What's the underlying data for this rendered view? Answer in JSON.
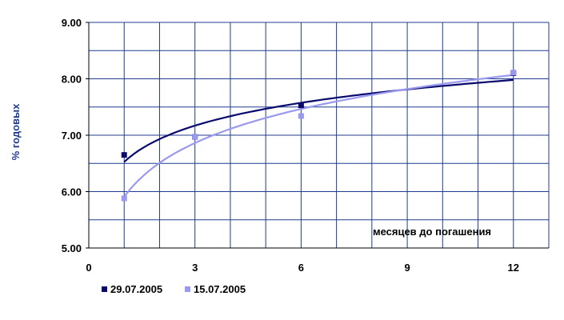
{
  "chart_data": {
    "type": "scatter",
    "title": "",
    "ylabel": "% годовых",
    "xlabel": "",
    "annotation": "месяцев до погашения",
    "xlim": [
      0,
      13
    ],
    "ylim": [
      5.0,
      9.0
    ],
    "xticks": [
      0,
      3,
      6,
      9,
      12
    ],
    "xtick_labels": [
      "0",
      "3",
      "6",
      "9",
      "12"
    ],
    "yticks": [
      5.0,
      6.0,
      7.0,
      8.0,
      9.0
    ],
    "ytick_labels": [
      "5.00",
      "6.00",
      "7.00",
      "8.00",
      "9.00"
    ],
    "grid": true,
    "legend_position": "bottom-left",
    "trendline": "logarithmic",
    "series": [
      {
        "name": "29.07.2005",
        "color": "#0a0a6e",
        "x": [
          1,
          3,
          6,
          12
        ],
        "y": [
          6.65,
          6.97,
          7.53,
          8.1
        ]
      },
      {
        "name": "15.07.2005",
        "color": "#9999ee",
        "x": [
          1,
          3,
          6,
          12
        ],
        "y": [
          5.88,
          6.97,
          7.34,
          8.11
        ]
      }
    ],
    "colors": {
      "plot_background": "#ffffff",
      "grid": "#1f3b8f",
      "axis": "#000000",
      "title": "#1a2fa8"
    }
  }
}
